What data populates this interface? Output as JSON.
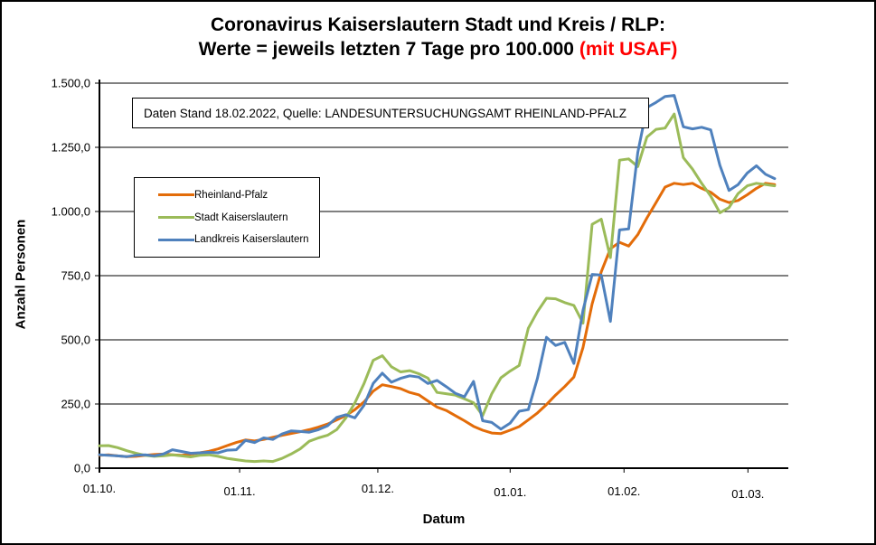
{
  "title": {
    "line1": "Coronavirus Kaiserslautern Stadt und Kreis / RLP:",
    "line2_prefix": "Werte = jeweils letzten 7 Tage pro 100.000 ",
    "line2_highlight": "(mit USAF)",
    "highlight_color": "#ff0000"
  },
  "caption": {
    "text": "Daten Stand 18.02.2022, Quelle: LANDESUNTERSUCHUNGSAMT RHEINLAND-PFALZ"
  },
  "legend": [
    {
      "label": "Rheinland-Pfalz",
      "color": "#E36C09"
    },
    {
      "label": "Stadt Kaiserslautern",
      "color": "#9BBB59"
    },
    {
      "label": "Landkreis Kaiserslautern",
      "color": "#4F81BD"
    }
  ],
  "axes": {
    "y_label": "Anzahl Personen",
    "x_label": "Datum",
    "y_tick_labels": [
      "1.500,0",
      "1.250,0",
      "1.000,0",
      "750,0",
      "500,0",
      "250,0",
      "0,0"
    ],
    "y_tick_values": [
      1500,
      1250,
      1000,
      750,
      500,
      250,
      0
    ],
    "x_tick_labels": [
      "01.10.",
      "01.11.",
      "01.12.",
      "01.01.",
      "01.02.",
      "01.03."
    ]
  },
  "chart_data": {
    "type": "line",
    "title": "Coronavirus Kaiserslautern Stadt und Kreis / RLP: Werte = jeweils letzten 7 Tage pro 100.000 (mit USAF)",
    "xlabel": "Datum",
    "ylabel": "Anzahl Personen",
    "ylim": [
      0,
      1500
    ],
    "grid": "horizontal",
    "legend_position": "upper-left-inside",
    "x_unit": "days since 01.10.2021",
    "xlim_days": [
      0,
      151
    ],
    "x_tick_days": [
      0,
      31,
      61,
      92,
      123,
      151
    ],
    "x_tick_labels": [
      "01.10.",
      "01.11.",
      "01.12.",
      "01.01.",
      "01.02.",
      "01.03."
    ],
    "x": [
      0,
      2,
      4,
      6,
      8,
      10,
      12,
      14,
      16,
      18,
      20,
      22,
      24,
      26,
      28,
      30,
      32,
      34,
      36,
      38,
      40,
      42,
      44,
      46,
      48,
      50,
      52,
      54,
      56,
      58,
      60,
      62,
      64,
      66,
      68,
      70,
      72,
      74,
      76,
      78,
      80,
      82,
      84,
      86,
      88,
      90,
      92,
      94,
      96,
      98,
      100,
      102,
      104,
      106,
      108,
      110,
      112,
      114,
      116,
      118,
      120,
      122,
      124,
      126,
      128,
      130,
      132,
      134,
      136,
      138,
      140,
      142,
      144,
      146,
      148
    ],
    "series": [
      {
        "name": "Rheinland-Pfalz",
        "color": "#E36C09",
        "values": [
          50,
          52,
          48,
          45,
          46,
          50,
          53,
          55,
          52,
          50,
          55,
          60,
          66,
          75,
          88,
          100,
          110,
          106,
          112,
          120,
          128,
          135,
          142,
          150,
          160,
          172,
          188,
          205,
          228,
          258,
          300,
          325,
          318,
          310,
          295,
          286,
          262,
          238,
          225,
          205,
          185,
          163,
          148,
          137,
          135,
          148,
          162,
          188,
          215,
          248,
          285,
          318,
          355,
          470,
          640,
          765,
          855,
          880,
          865,
          910,
          975,
          1035,
          1095,
          1110,
          1105,
          1110,
          1090,
          1075,
          1048,
          1035,
          1043,
          1065,
          1090,
          1110,
          1105
        ]
      },
      {
        "name": "Stadt Kaiserslautern",
        "color": "#9BBB59",
        "values": [
          87,
          88,
          80,
          68,
          58,
          50,
          46,
          48,
          52,
          48,
          44,
          50,
          52,
          46,
          38,
          33,
          28,
          26,
          28,
          26,
          38,
          55,
          75,
          105,
          118,
          128,
          150,
          195,
          255,
          330,
          420,
          438,
          395,
          375,
          380,
          368,
          351,
          295,
          290,
          285,
          270,
          255,
          205,
          290,
          352,
          378,
          400,
          545,
          610,
          662,
          660,
          645,
          634,
          565,
          950,
          970,
          820,
          1200,
          1205,
          1175,
          1290,
          1320,
          1325,
          1380,
          1210,
          1165,
          1110,
          1060,
          995,
          1015,
          1070,
          1100,
          1110,
          1105,
          1100
        ]
      },
      {
        "name": "Landkreis Kaiserslautern",
        "color": "#4F81BD",
        "values": [
          52,
          50,
          48,
          45,
          50,
          52,
          48,
          55,
          72,
          65,
          58,
          60,
          62,
          60,
          70,
          72,
          108,
          100,
          118,
          112,
          133,
          145,
          143,
          140,
          150,
          165,
          198,
          208,
          196,
          245,
          330,
          370,
          335,
          350,
          360,
          355,
          330,
          342,
          318,
          292,
          278,
          338,
          185,
          178,
          152,
          175,
          222,
          228,
          350,
          510,
          478,
          490,
          408,
          615,
          755,
          752,
          572,
          928,
          932,
          1230,
          1405,
          1425,
          1448,
          1452,
          1330,
          1322,
          1328,
          1318,
          1180,
          1082,
          1105,
          1150,
          1178,
          1145,
          1128
        ]
      }
    ]
  }
}
